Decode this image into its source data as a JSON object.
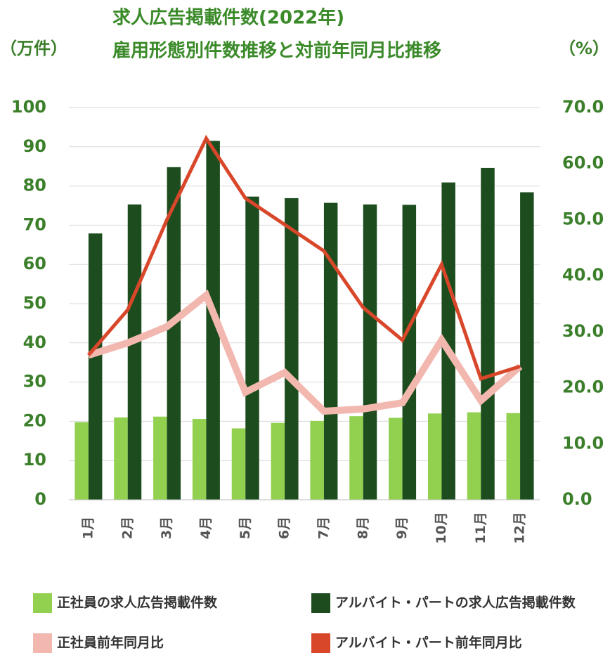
{
  "chart_data": {
    "type": "bar",
    "title": "求人広告掲載件数(2022年)",
    "subtitle": "雇用形態別件数推移と対前年同月比推移",
    "ylabel": "（万件）",
    "y2label": "（%）",
    "categories": [
      "1月",
      "2月",
      "3月",
      "4月",
      "5月",
      "6月",
      "7月",
      "8月",
      "9月",
      "10月",
      "11月",
      "12月"
    ],
    "series": [
      {
        "name": "正社員の求人広告掲載件数",
        "color": "#92d050",
        "type": "bar",
        "values": [
          19.8,
          21,
          21.2,
          20.6,
          18.2,
          19.6,
          20.1,
          21.3,
          20.9,
          22,
          22.3,
          22.1
        ]
      },
      {
        "name": "アルバイト・パートの求人広告掲載件数",
        "color": "#1d4d1f",
        "type": "bar",
        "values": [
          67.9,
          75.3,
          84.8,
          91.5,
          77.3,
          76.9,
          75.7,
          75.3,
          75.2,
          80.9,
          84.6,
          78.4
        ]
      },
      {
        "name": "正社員前年同月比",
        "color": "#f2b8b0",
        "type": "line",
        "axis": "y2",
        "values": [
          25.8,
          28.0,
          30.9,
          36.5,
          19.2,
          22.7,
          15.8,
          16.2,
          17.3,
          28.5,
          17.7,
          23.8
        ]
      },
      {
        "name": "アルバイト・パート前年同月比",
        "color": "#d9472b",
        "type": "line",
        "axis": "y2",
        "values": [
          25.8,
          33.9,
          50.0,
          64.5,
          53.8,
          49.1,
          44.4,
          34.3,
          28.5,
          42.0,
          21.6,
          23.8
        ]
      }
    ],
    "ylim": [
      0,
      100
    ],
    "yticks": [
      0,
      10,
      20,
      30,
      40,
      50,
      60,
      70,
      80,
      90,
      100
    ],
    "y2lim": [
      0,
      70
    ],
    "y2ticks": [
      {
        "value": 0,
        "label": "0.0"
      },
      {
        "value": 10,
        "label": "10.0"
      },
      {
        "value": 20,
        "label": "20.0"
      },
      {
        "value": 30,
        "label": "30.0"
      },
      {
        "value": 40,
        "label": "40.0"
      },
      {
        "value": 50,
        "label": "50.0"
      },
      {
        "value": 60,
        "label": "60.0"
      },
      {
        "value": 70,
        "label": "70.0"
      }
    ],
    "grid": true
  }
}
